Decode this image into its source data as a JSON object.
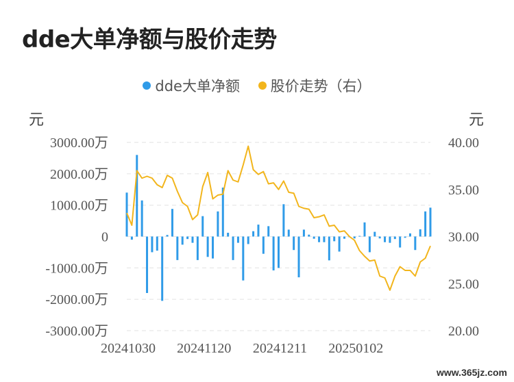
{
  "title": "dde大单净额与股价走势",
  "legend": {
    "series1": "dde大单净额",
    "series2": "股价走势（右）"
  },
  "units": {
    "left": "元",
    "right": "元"
  },
  "colors": {
    "bars": "#2f9be8",
    "line": "#f2b51c",
    "grid": "#e6e6e6"
  },
  "watermark": "www.365jz.com",
  "chart_data": {
    "type": "bar+line",
    "title": "dde大单净额与股价走势",
    "legend_position": "top-center",
    "grid": true,
    "x_tick_labels": [
      "20241030",
      "20241120",
      "20241211",
      "20250102"
    ],
    "x_tick_indices": [
      0,
      15,
      30,
      45
    ],
    "y_left": {
      "label": "元",
      "range": [
        -3000,
        3000
      ],
      "ticks": [
        3000,
        2000,
        1000,
        0,
        -1000,
        -2000,
        -3000
      ],
      "tick_labels": [
        "3000.00万",
        "2000.00万",
        "1000.00万",
        "0",
        "-1000.00万",
        "-2000.00万",
        "-3000.00万"
      ]
    },
    "y_right": {
      "label": "元",
      "range": [
        20,
        40
      ],
      "ticks": [
        40,
        35,
        30,
        25,
        20
      ],
      "tick_labels": [
        "40.00",
        "35.00",
        "30.00",
        "25.00",
        "20.00"
      ]
    },
    "series": [
      {
        "name": "dde大单净额",
        "type": "bar",
        "axis": "left",
        "unit": "万元",
        "values": [
          1400,
          -100,
          2600,
          1150,
          -1800,
          -500,
          -450,
          -2050,
          50,
          880,
          -750,
          -260,
          -80,
          -200,
          -750,
          650,
          -650,
          -700,
          800,
          1560,
          120,
          -750,
          -200,
          -1400,
          -240,
          170,
          380,
          -550,
          330,
          -1080,
          -1000,
          1030,
          220,
          -430,
          -1300,
          220,
          60,
          -70,
          -180,
          -180,
          -760,
          -150,
          -480,
          -70,
          -20,
          -60,
          20,
          450,
          -500,
          150,
          -60,
          -180,
          -200,
          -80,
          -350,
          -40,
          100,
          -430,
          230,
          800,
          920
        ]
      },
      {
        "name": "股价走势（右）",
        "type": "line",
        "axis": "right",
        "unit": "元",
        "values": [
          32.5,
          31.2,
          37.0,
          36.2,
          36.4,
          36.2,
          35.5,
          35.2,
          36.5,
          36.2,
          34.8,
          33.6,
          33.2,
          31.8,
          32.3,
          35.3,
          36.8,
          34.0,
          34.4,
          34.5,
          37.0,
          36.0,
          35.8,
          37.6,
          39.6,
          37.1,
          36.6,
          36.9,
          35.6,
          35.7,
          35.0,
          35.9,
          34.7,
          34.6,
          33.2,
          33.0,
          32.9,
          32.0,
          32.1,
          32.3,
          31.1,
          31.2,
          30.5,
          30.6,
          30.0,
          29.6,
          28.5,
          27.9,
          27.4,
          27.5,
          25.8,
          25.6,
          24.3,
          25.8,
          26.8,
          26.4,
          26.4,
          25.8,
          27.3,
          27.7,
          29.0
        ]
      }
    ]
  }
}
